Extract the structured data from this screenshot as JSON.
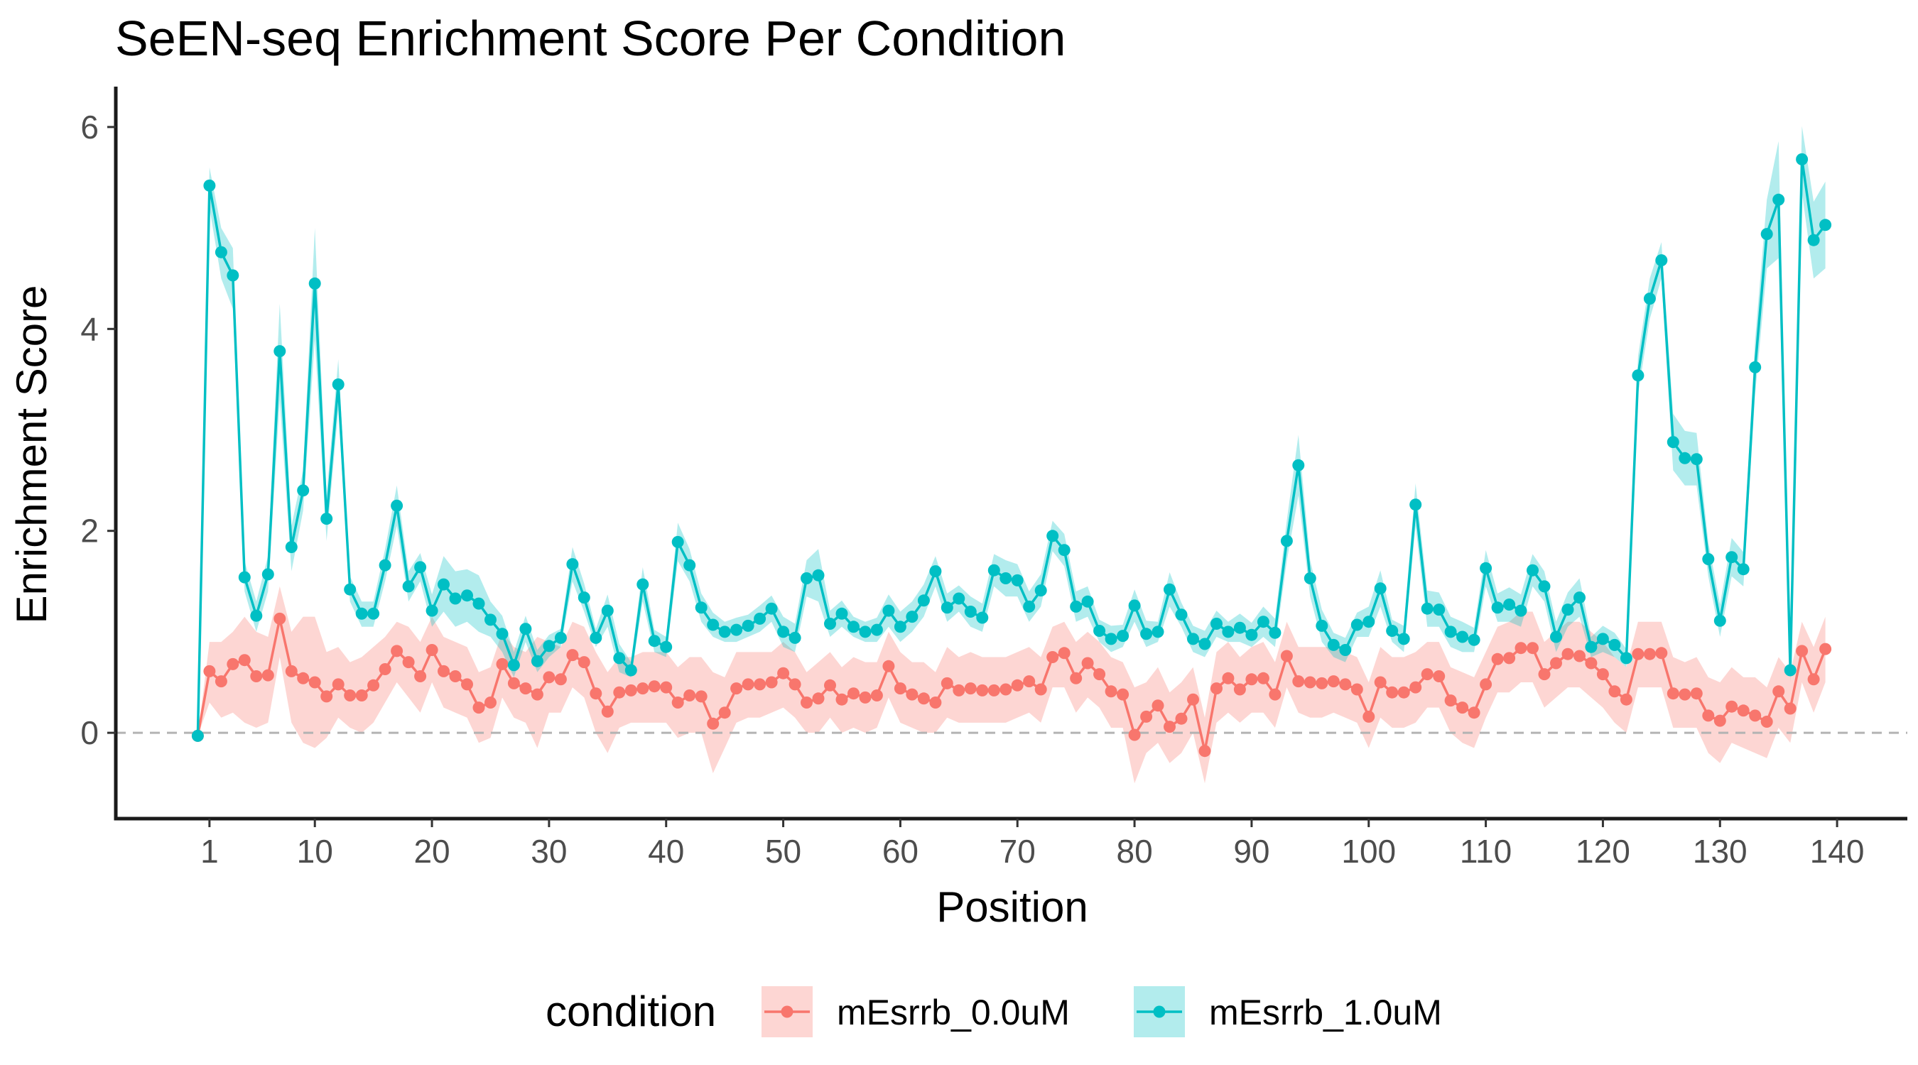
{
  "chart_data": {
    "type": "line",
    "title": "SeEN-seq Enrichment Score Per Condition",
    "xlabel": "Position",
    "ylabel": "Enrichment Score",
    "xlim": [
      -7,
      146
    ],
    "ylim": [
      -0.85,
      6.4
    ],
    "x_ticks": [
      1,
      10,
      20,
      30,
      40,
      50,
      60,
      70,
      80,
      90,
      100,
      110,
      120,
      130,
      140
    ],
    "y_ticks": [
      0,
      2,
      4,
      6
    ],
    "reference_line": {
      "y": 0,
      "style": "dashed"
    },
    "legend": {
      "title": "condition",
      "position": "bottom"
    },
    "grid": false,
    "series": [
      {
        "name": "mEsrrb_0.0uM",
        "color": "#F8766D",
        "values": [
          -0.03,
          0.61,
          0.51,
          0.68,
          0.72,
          0.56,
          0.57,
          1.13,
          0.61,
          0.54,
          0.5,
          0.36,
          0.48,
          0.37,
          0.37,
          0.47,
          0.63,
          0.81,
          0.7,
          0.56,
          0.82,
          0.61,
          0.56,
          0.48,
          0.25,
          0.3,
          0.68,
          0.49,
          0.44,
          0.38,
          0.55,
          0.53,
          0.77,
          0.7,
          0.39,
          0.21,
          0.4,
          0.42,
          0.44,
          0.46,
          0.45,
          0.3,
          0.37,
          0.36,
          0.09,
          0.2,
          0.44,
          0.48,
          0.48,
          0.5,
          0.59,
          0.48,
          0.3,
          0.34,
          0.47,
          0.33,
          0.39,
          0.35,
          0.37,
          0.66,
          0.44,
          0.38,
          0.34,
          0.3,
          0.49,
          0.42,
          0.44,
          0.42,
          0.42,
          0.43,
          0.47,
          0.51,
          0.43,
          0.75,
          0.79,
          0.54,
          0.69,
          0.58,
          0.41,
          0.38,
          -0.02,
          0.16,
          0.27,
          0.06,
          0.14,
          0.33,
          -0.18,
          0.44,
          0.54,
          0.43,
          0.53,
          0.54,
          0.38,
          0.76,
          0.51,
          0.5,
          0.49,
          0.51,
          0.48,
          0.43,
          0.16,
          0.5,
          0.4,
          0.4,
          0.45,
          0.58,
          0.56,
          0.32,
          0.25,
          0.2,
          0.48,
          0.73,
          0.74,
          0.84,
          0.84,
          0.58,
          0.69,
          0.78,
          0.76,
          0.69,
          0.58,
          0.41,
          0.33,
          0.78,
          0.78,
          0.79,
          0.39,
          0.38,
          0.39,
          0.17,
          0.12,
          0.26,
          0.22,
          0.17,
          0.11,
          0.41,
          0.24,
          0.81,
          0.53,
          0.83
        ],
        "lower": [
          -0.03,
          0.3,
          0.15,
          0.2,
          0.1,
          0.05,
          0.1,
          0.75,
          0.1,
          -0.1,
          -0.15,
          -0.05,
          0.15,
          0.05,
          0.0,
          0.1,
          0.3,
          0.5,
          0.35,
          0.2,
          0.5,
          0.25,
          0.2,
          0.15,
          -0.1,
          -0.05,
          0.35,
          0.15,
          0.1,
          -0.15,
          0.2,
          0.2,
          0.45,
          0.35,
          0.0,
          -0.2,
          0.05,
          0.1,
          0.1,
          0.1,
          0.1,
          -0.05,
          0.0,
          0.0,
          -0.4,
          -0.15,
          0.1,
          0.15,
          0.15,
          0.2,
          0.25,
          0.15,
          0.0,
          0.0,
          0.15,
          0.0,
          0.05,
          0.0,
          0.05,
          0.35,
          0.1,
          0.05,
          0.0,
          0.0,
          0.15,
          0.1,
          0.1,
          0.1,
          0.1,
          0.1,
          0.15,
          0.2,
          0.1,
          0.45,
          0.45,
          0.2,
          0.35,
          0.25,
          0.05,
          0.05,
          -0.5,
          -0.2,
          -0.1,
          -0.3,
          -0.2,
          0.0,
          -0.5,
          0.1,
          0.2,
          0.1,
          0.2,
          0.2,
          0.05,
          0.45,
          0.2,
          0.15,
          0.15,
          0.2,
          0.15,
          0.1,
          -0.15,
          0.15,
          0.05,
          0.05,
          0.1,
          0.25,
          0.25,
          0.0,
          -0.1,
          -0.15,
          0.15,
          0.4,
          0.4,
          0.5,
          0.5,
          0.25,
          0.35,
          0.45,
          0.45,
          0.35,
          0.25,
          0.1,
          0.0,
          0.45,
          0.45,
          0.45,
          0.05,
          0.05,
          0.05,
          -0.2,
          -0.3,
          -0.1,
          -0.15,
          -0.2,
          -0.25,
          0.05,
          -0.1,
          0.5,
          0.2,
          0.5
        ],
        "upper": [
          -0.03,
          0.9,
          0.9,
          1.0,
          1.15,
          1.0,
          0.95,
          1.45,
          1.0,
          1.15,
          1.15,
          0.8,
          0.85,
          0.7,
          0.75,
          0.85,
          0.95,
          1.1,
          1.05,
          0.9,
          1.15,
          0.95,
          0.9,
          0.85,
          0.6,
          0.65,
          1.0,
          0.85,
          0.8,
          0.95,
          0.9,
          0.85,
          1.1,
          1.05,
          0.8,
          0.6,
          0.75,
          0.75,
          0.8,
          0.8,
          0.8,
          0.65,
          0.75,
          0.75,
          0.6,
          0.55,
          0.8,
          0.8,
          0.8,
          0.8,
          0.9,
          0.8,
          0.6,
          0.7,
          0.8,
          0.65,
          0.75,
          0.7,
          0.7,
          1.0,
          0.8,
          0.7,
          0.7,
          0.6,
          0.85,
          0.75,
          0.8,
          0.75,
          0.75,
          0.75,
          0.8,
          0.85,
          0.75,
          1.05,
          1.1,
          0.9,
          1.0,
          0.9,
          0.75,
          0.7,
          0.45,
          0.5,
          0.65,
          0.4,
          0.5,
          0.65,
          0.15,
          0.8,
          0.9,
          0.75,
          0.85,
          0.9,
          0.7,
          1.1,
          0.85,
          0.85,
          0.85,
          0.85,
          0.8,
          0.75,
          0.5,
          0.85,
          0.75,
          0.75,
          0.8,
          0.9,
          0.9,
          0.65,
          0.6,
          0.55,
          0.8,
          1.05,
          1.1,
          1.2,
          1.2,
          0.9,
          1.0,
          1.1,
          1.1,
          1.0,
          0.9,
          0.75,
          0.65,
          1.1,
          1.1,
          1.1,
          0.75,
          0.7,
          0.75,
          0.55,
          0.5,
          0.65,
          0.55,
          0.55,
          0.45,
          0.75,
          0.6,
          1.1,
          0.85,
          1.15
        ]
      },
      {
        "name": "mEsrrb_1.0uM",
        "color": "#00BFC4",
        "values": [
          -0.03,
          5.42,
          4.76,
          4.53,
          1.54,
          1.16,
          1.57,
          3.78,
          1.84,
          2.4,
          4.45,
          2.12,
          3.45,
          1.42,
          1.18,
          1.18,
          1.66,
          2.25,
          1.45,
          1.64,
          1.21,
          1.47,
          1.33,
          1.36,
          1.28,
          1.12,
          0.98,
          0.67,
          1.03,
          0.71,
          0.86,
          0.94,
          1.67,
          1.34,
          0.94,
          1.21,
          0.74,
          0.62,
          1.47,
          0.91,
          0.85,
          1.89,
          1.66,
          1.24,
          1.07,
          1.0,
          1.02,
          1.06,
          1.13,
          1.23,
          1.0,
          0.94,
          1.53,
          1.56,
          1.08,
          1.18,
          1.05,
          1.0,
          1.02,
          1.21,
          1.05,
          1.15,
          1.31,
          1.6,
          1.24,
          1.33,
          1.2,
          1.14,
          1.61,
          1.53,
          1.51,
          1.25,
          1.41,
          1.95,
          1.81,
          1.25,
          1.3,
          1.01,
          0.93,
          0.96,
          1.26,
          0.98,
          1.0,
          1.42,
          1.17,
          0.93,
          0.88,
          1.08,
          1.0,
          1.04,
          0.97,
          1.1,
          0.99,
          1.9,
          2.65,
          1.53,
          1.06,
          0.87,
          0.82,
          1.07,
          1.1,
          1.43,
          1.01,
          0.93,
          2.26,
          1.23,
          1.22,
          1.0,
          0.95,
          0.92,
          1.63,
          1.24,
          1.27,
          1.21,
          1.61,
          1.45,
          0.95,
          1.22,
          1.34,
          0.85,
          0.93,
          0.87,
          0.74,
          3.54,
          4.3,
          4.68,
          2.88,
          2.72,
          2.71,
          1.72,
          1.11,
          1.74,
          1.62,
          3.62,
          4.94,
          5.28,
          0.62,
          5.68,
          4.88,
          5.03
        ],
        "lower": [
          -0.03,
          5.2,
          4.5,
          4.2,
          1.4,
          1.0,
          1.4,
          3.3,
          1.6,
          2.2,
          3.9,
          1.9,
          3.2,
          1.3,
          1.05,
          1.05,
          1.5,
          2.05,
          1.3,
          1.5,
          1.05,
          1.2,
          1.05,
          1.1,
          1.0,
          0.95,
          0.8,
          0.55,
          0.9,
          0.6,
          0.75,
          0.85,
          1.5,
          1.2,
          0.85,
          1.05,
          0.6,
          0.55,
          1.3,
          0.8,
          0.75,
          1.7,
          1.5,
          1.1,
          0.95,
          0.9,
          0.9,
          0.95,
          1.0,
          1.1,
          0.85,
          0.8,
          1.35,
          1.3,
          0.95,
          1.05,
          0.95,
          0.9,
          0.9,
          1.05,
          0.9,
          1.0,
          1.15,
          1.45,
          1.1,
          1.2,
          1.05,
          1.0,
          1.45,
          1.35,
          1.35,
          1.1,
          1.25,
          1.8,
          1.65,
          1.1,
          1.15,
          0.9,
          0.8,
          0.85,
          1.1,
          0.85,
          0.9,
          1.25,
          1.05,
          0.8,
          0.75,
          0.95,
          0.9,
          0.9,
          0.85,
          0.95,
          0.85,
          1.7,
          2.35,
          1.35,
          0.9,
          0.75,
          0.7,
          0.95,
          0.95,
          1.25,
          0.9,
          0.8,
          2.05,
          1.05,
          1.05,
          0.85,
          0.8,
          0.8,
          1.45,
          1.1,
          1.1,
          1.05,
          1.45,
          1.3,
          0.8,
          1.05,
          1.15,
          0.75,
          0.8,
          0.75,
          0.65,
          3.35,
          4.1,
          4.5,
          2.6,
          2.45,
          2.45,
          1.55,
          0.95,
          1.55,
          1.45,
          3.35,
          4.6,
          4.7,
          0.5,
          5.35,
          4.5,
          4.6
        ],
        "upper": [
          -0.03,
          5.6,
          5.0,
          4.8,
          1.7,
          1.3,
          1.75,
          4.25,
          2.05,
          2.6,
          5.0,
          2.35,
          3.7,
          1.55,
          1.3,
          1.3,
          1.82,
          2.45,
          1.6,
          1.78,
          1.37,
          1.75,
          1.6,
          1.62,
          1.56,
          1.3,
          1.16,
          0.8,
          1.16,
          0.82,
          0.97,
          1.03,
          1.84,
          1.48,
          1.03,
          1.37,
          0.88,
          0.7,
          1.64,
          1.02,
          0.95,
          2.08,
          1.82,
          1.38,
          1.19,
          1.1,
          1.14,
          1.17,
          1.26,
          1.36,
          1.15,
          1.08,
          1.71,
          1.82,
          1.21,
          1.31,
          1.15,
          1.1,
          1.14,
          1.37,
          1.2,
          1.3,
          1.47,
          1.75,
          1.38,
          1.46,
          1.35,
          1.28,
          1.77,
          1.71,
          1.67,
          1.4,
          1.57,
          2.1,
          1.97,
          1.4,
          1.45,
          1.12,
          1.06,
          1.07,
          1.42,
          1.11,
          1.1,
          1.59,
          1.29,
          1.06,
          1.01,
          1.21,
          1.1,
          1.18,
          1.09,
          1.25,
          1.13,
          2.1,
          2.95,
          1.71,
          1.22,
          0.99,
          0.94,
          1.19,
          1.25,
          1.61,
          1.12,
          1.06,
          2.47,
          1.41,
          1.39,
          1.15,
          1.1,
          1.04,
          1.81,
          1.38,
          1.44,
          1.37,
          1.77,
          1.6,
          1.1,
          1.39,
          1.53,
          0.95,
          1.06,
          0.99,
          0.83,
          3.73,
          4.5,
          4.86,
          3.16,
          2.99,
          2.97,
          1.89,
          1.27,
          1.93,
          1.79,
          3.89,
          5.28,
          5.86,
          0.74,
          6.01,
          5.26,
          5.46
        ]
      }
    ]
  }
}
